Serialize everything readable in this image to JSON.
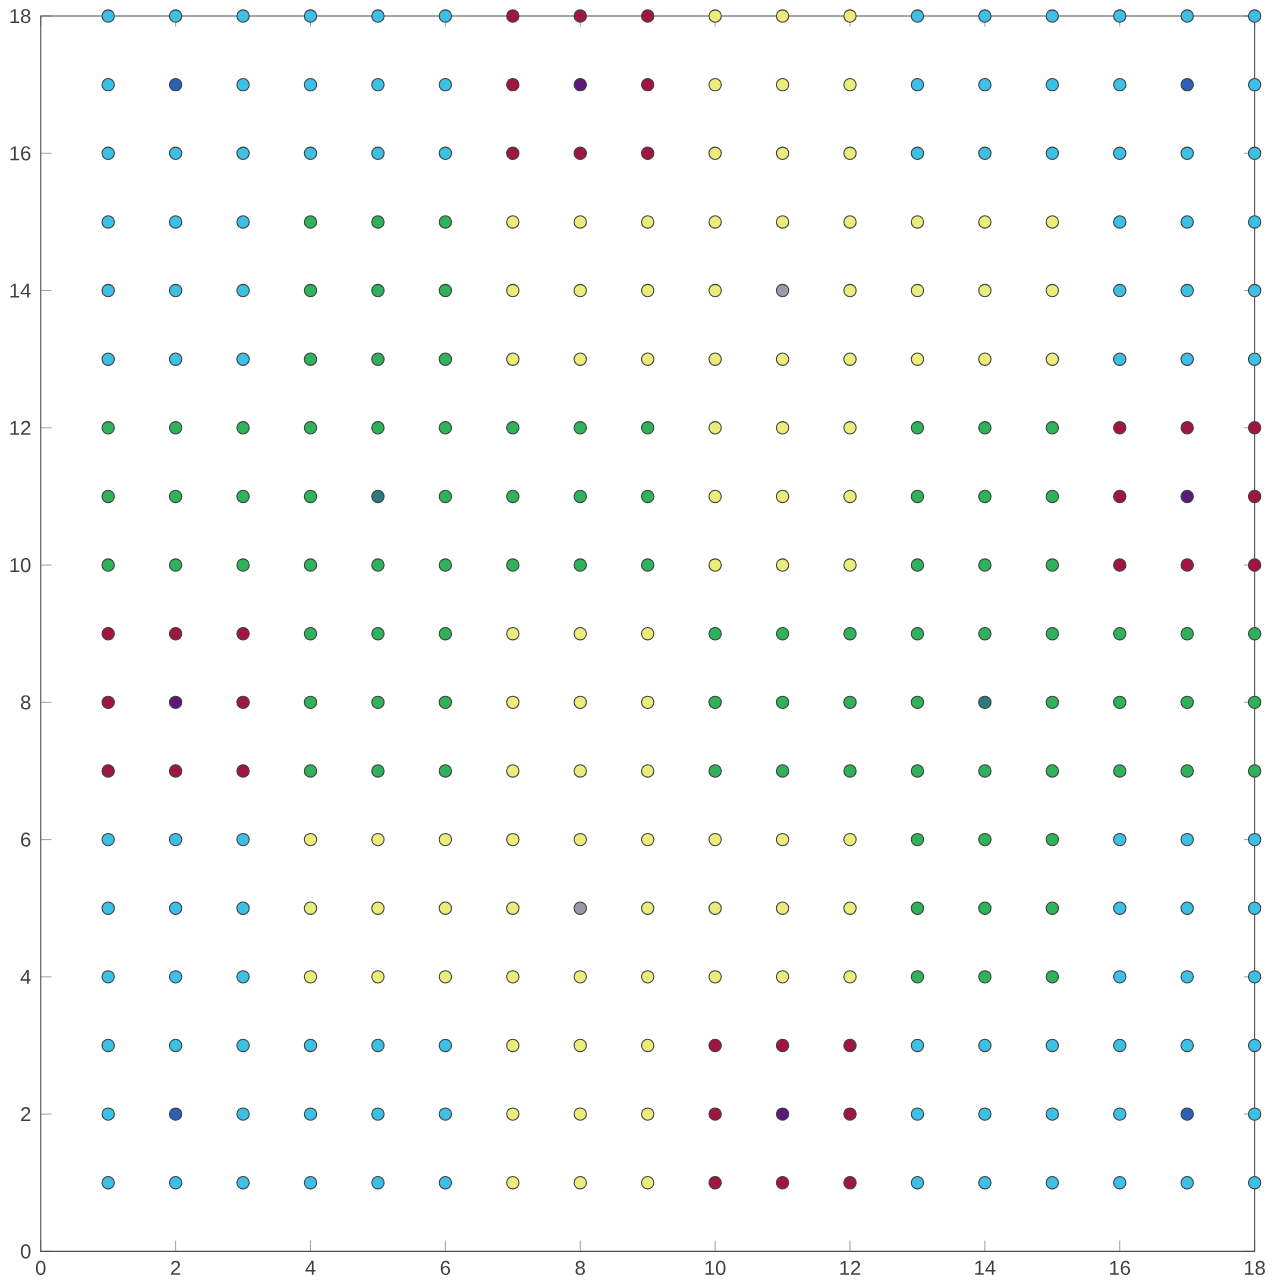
{
  "chart_data": {
    "type": "scatter",
    "xlim": [
      0,
      18
    ],
    "ylim": [
      0,
      18
    ],
    "xticks": [
      0,
      2,
      4,
      6,
      8,
      10,
      12,
      14,
      16,
      18
    ],
    "yticks": [
      0,
      2,
      4,
      6,
      8,
      10,
      12,
      14,
      16,
      18
    ],
    "marker": "circle",
    "grid": false,
    "series": [
      {
        "color": "#3cc0e6",
        "x": [
          1,
          2,
          3,
          4,
          5,
          6,
          13,
          14,
          15,
          16,
          17,
          18,
          1,
          3,
          4,
          5,
          6,
          13,
          14,
          15,
          16,
          18,
          1,
          2,
          3,
          4,
          5,
          6,
          13,
          14,
          15,
          16,
          17,
          18,
          1,
          2,
          3,
          16,
          17,
          18,
          1,
          2,
          3,
          16,
          17,
          18,
          1,
          2,
          3,
          16,
          17,
          18,
          1,
          2,
          3,
          16,
          17,
          18,
          1,
          2,
          3,
          16,
          17,
          18,
          1,
          2,
          3,
          16,
          17,
          18,
          1,
          2,
          3,
          4,
          5,
          6,
          13,
          14,
          15,
          16,
          17,
          18,
          1,
          3,
          4,
          5,
          6,
          13,
          14,
          15,
          16,
          18,
          1,
          2,
          3,
          4,
          5,
          6,
          13,
          14,
          15,
          16,
          17,
          18
        ],
        "values": [
          18,
          18,
          18,
          18,
          18,
          18,
          18,
          18,
          18,
          18,
          18,
          18,
          17,
          17,
          17,
          17,
          17,
          17,
          17,
          17,
          17,
          17,
          16,
          16,
          16,
          16,
          16,
          16,
          16,
          16,
          16,
          16,
          16,
          16,
          15,
          15,
          15,
          15,
          15,
          15,
          14,
          14,
          14,
          14,
          14,
          14,
          13,
          13,
          13,
          13,
          13,
          13,
          6,
          6,
          6,
          6,
          6,
          6,
          5,
          5,
          5,
          5,
          5,
          5,
          4,
          4,
          4,
          4,
          4,
          4,
          3,
          3,
          3,
          3,
          3,
          3,
          3,
          3,
          3,
          3,
          3,
          3,
          2,
          2,
          2,
          2,
          2,
          2,
          2,
          2,
          2,
          2,
          1,
          1,
          1,
          1,
          1,
          1,
          1,
          1,
          1,
          1,
          1,
          1
        ]
      },
      {
        "color": "#2eb35a",
        "x": [
          4,
          5,
          6,
          4,
          5,
          6,
          4,
          5,
          6,
          1,
          2,
          3,
          4,
          5,
          6,
          7,
          8,
          9,
          13,
          14,
          15,
          1,
          2,
          3,
          4,
          6,
          7,
          8,
          9,
          13,
          14,
          15,
          1,
          2,
          3,
          4,
          5,
          6,
          7,
          8,
          9,
          13,
          14,
          15,
          4,
          5,
          6,
          10,
          11,
          12,
          13,
          14,
          15,
          16,
          17,
          18,
          4,
          5,
          6,
          10,
          11,
          12,
          13,
          15,
          16,
          17,
          18,
          4,
          5,
          6,
          10,
          11,
          12,
          13,
          14,
          15,
          16,
          17,
          18,
          13,
          14,
          15,
          13,
          14,
          15,
          13,
          14,
          15
        ],
        "values": [
          15,
          15,
          15,
          14,
          14,
          14,
          13,
          13,
          13,
          12,
          12,
          12,
          12,
          12,
          12,
          12,
          12,
          12,
          12,
          12,
          12,
          11,
          11,
          11,
          11,
          11,
          11,
          11,
          11,
          11,
          11,
          11,
          10,
          10,
          10,
          10,
          10,
          10,
          10,
          10,
          10,
          10,
          10,
          10,
          9,
          9,
          9,
          9,
          9,
          9,
          9,
          9,
          9,
          9,
          9,
          9,
          8,
          8,
          8,
          8,
          8,
          8,
          8,
          8,
          8,
          8,
          8,
          7,
          7,
          7,
          7,
          7,
          7,
          7,
          7,
          7,
          7,
          7,
          7,
          6,
          6,
          6,
          5,
          5,
          5,
          4,
          4,
          4
        ]
      },
      {
        "color": "#ecec7a",
        "x": [
          10,
          11,
          12,
          10,
          11,
          12,
          10,
          11,
          12,
          7,
          8,
          9,
          10,
          11,
          12,
          13,
          14,
          15,
          7,
          8,
          9,
          10,
          12,
          13,
          14,
          15,
          7,
          8,
          9,
          10,
          11,
          12,
          13,
          14,
          15,
          10,
          11,
          12,
          10,
          11,
          12,
          10,
          11,
          12,
          7,
          8,
          9,
          7,
          8,
          9,
          7,
          8,
          9,
          4,
          5,
          6,
          7,
          8,
          9,
          10,
          11,
          12,
          4,
          5,
          6,
          7,
          9,
          10,
          11,
          12,
          4,
          5,
          6,
          7,
          8,
          9,
          10,
          11,
          12,
          7,
          8,
          9,
          7,
          8,
          9,
          7,
          8,
          9
        ],
        "values": [
          18,
          18,
          18,
          17,
          17,
          17,
          16,
          16,
          16,
          15,
          15,
          15,
          15,
          15,
          15,
          15,
          15,
          15,
          14,
          14,
          14,
          14,
          14,
          14,
          14,
          14,
          13,
          13,
          13,
          13,
          13,
          13,
          13,
          13,
          13,
          12,
          12,
          12,
          11,
          11,
          11,
          10,
          10,
          10,
          9,
          9,
          9,
          8,
          8,
          8,
          7,
          7,
          7,
          6,
          6,
          6,
          6,
          6,
          6,
          6,
          6,
          6,
          5,
          5,
          5,
          5,
          5,
          5,
          5,
          5,
          4,
          4,
          4,
          4,
          4,
          4,
          4,
          4,
          4,
          3,
          3,
          3,
          2,
          2,
          2,
          1,
          1,
          1
        ]
      },
      {
        "color": "#a0163f",
        "x": [
          7,
          8,
          9,
          7,
          9,
          7,
          8,
          9,
          16,
          17,
          18,
          16,
          18,
          16,
          17,
          18,
          1,
          2,
          3,
          1,
          3,
          1,
          2,
          3,
          10,
          11,
          12,
          10,
          12,
          10,
          11,
          12
        ],
        "values": [
          18,
          18,
          18,
          17,
          17,
          16,
          16,
          16,
          12,
          12,
          12,
          11,
          11,
          10,
          10,
          10,
          9,
          9,
          9,
          8,
          8,
          7,
          7,
          7,
          3,
          3,
          3,
          2,
          2,
          1,
          1,
          1
        ]
      },
      {
        "color": "#5b1a7a",
        "x": [
          8,
          17,
          2,
          11
        ],
        "values": [
          17,
          11,
          8,
          2
        ]
      },
      {
        "color": "#2e5fb8",
        "x": [
          2,
          17,
          2,
          17
        ],
        "values": [
          17,
          17,
          2,
          2
        ]
      },
      {
        "color": "#9a9aaa",
        "x": [
          11,
          8
        ],
        "values": [
          14,
          5
        ]
      },
      {
        "color": "#2a7a80",
        "x": [
          5,
          14
        ],
        "values": [
          11,
          8
        ]
      }
    ]
  }
}
